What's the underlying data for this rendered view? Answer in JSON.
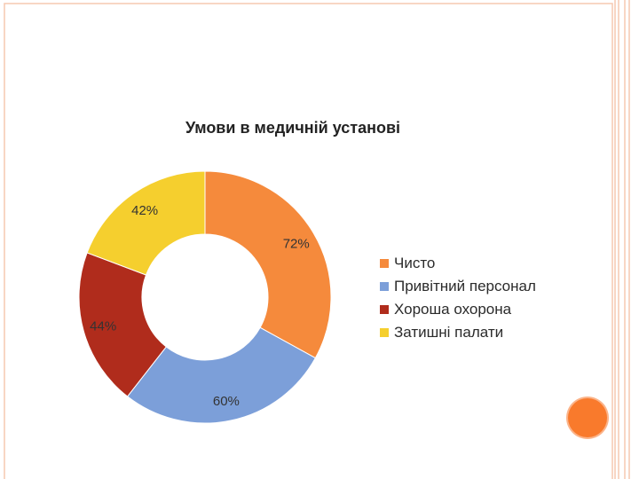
{
  "chart_data": {
    "type": "pie",
    "title": "Умови в медичній установі",
    "categories": [
      "Чисто",
      "Привітний персонал",
      "Хороша охорона",
      "Затишні палати"
    ],
    "values": [
      72,
      60,
      44,
      42
    ],
    "labels": [
      "72%",
      "60%",
      "44%",
      "42%"
    ],
    "colors": [
      "#f58a3c",
      "#7c9fd9",
      "#b02c1c",
      "#f5cf2e"
    ],
    "donut": true,
    "legend_position": "right"
  },
  "theme": {
    "frame_color": "#f6c9b0",
    "accent_circle": "#f97a2c"
  }
}
